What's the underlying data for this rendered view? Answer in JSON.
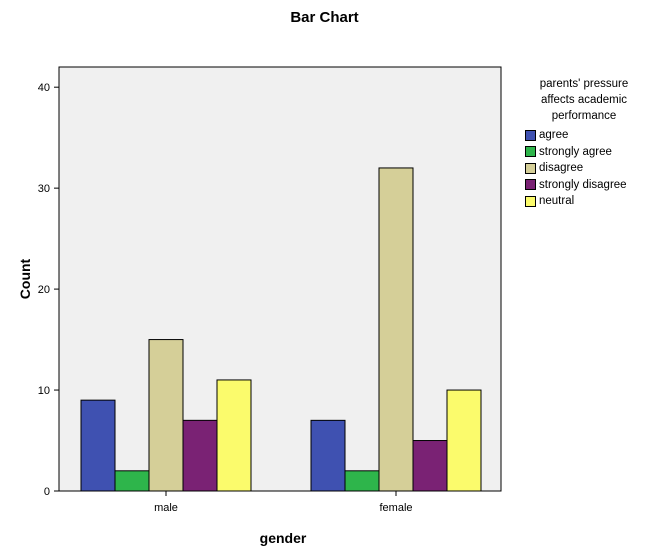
{
  "chart_data": {
    "type": "bar",
    "title": "Bar Chart",
    "xlabel": "gender",
    "ylabel": "Count",
    "categories": [
      "male",
      "female"
    ],
    "ylim": [
      0,
      42
    ],
    "yticks": [
      0,
      10,
      20,
      30,
      40
    ],
    "grid": false,
    "legend": {
      "title": [
        "parents' pressure",
        "affects academic",
        "performance"
      ],
      "placement": "right"
    },
    "series": [
      {
        "name": "agree",
        "values": [
          9,
          7
        ],
        "color": "#3f51b1"
      },
      {
        "name": "strongly agree",
        "values": [
          2,
          2
        ],
        "color": "#2eb54b"
      },
      {
        "name": "disagree",
        "values": [
          15,
          32
        ],
        "color": "#d5cf98"
      },
      {
        "name": "strongly disagree",
        "values": [
          7,
          5
        ],
        "color": "#7a2274"
      },
      {
        "name": "neutral",
        "values": [
          11,
          10
        ],
        "color": "#fbfb6c"
      }
    ],
    "plot_background": "#f0f0f0"
  }
}
